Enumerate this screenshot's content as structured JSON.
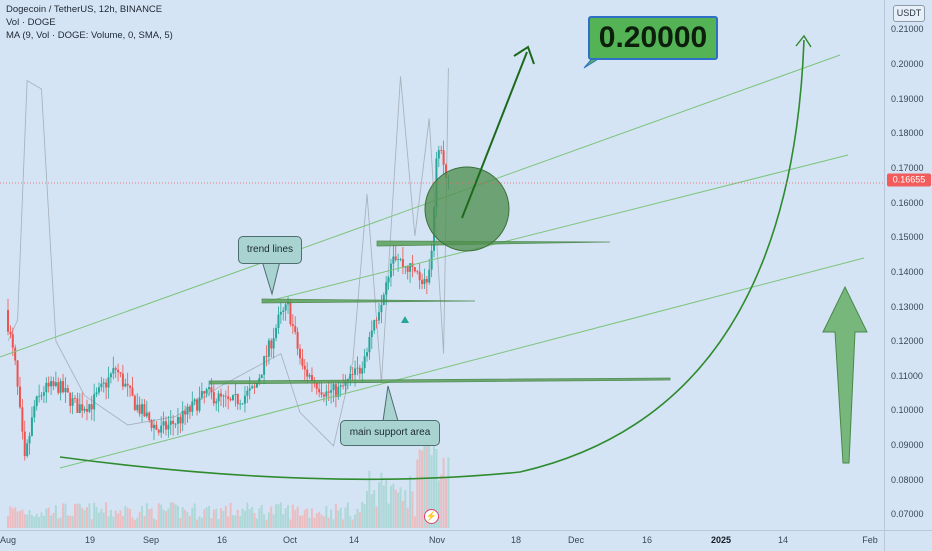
{
  "legend": {
    "line1": "Dogecoin / TetherUS, 12h, BINANCE",
    "line2": "Vol · DOGE",
    "line3": "MA (9, Vol · DOGE: Volume, 0, SMA, 5)"
  },
  "currency_label": "USDT",
  "last_price": {
    "label": "0.16655",
    "value": 0.16655,
    "color": "#f25c5c"
  },
  "annotations": {
    "target": "0.20000",
    "trend_lines": "trend lines",
    "support": "main support area"
  },
  "ms_badge": "⚡",
  "colors": {
    "up": "#26a69a",
    "down": "#ef5350",
    "drawing_green": "#2e8b2e",
    "background": "#d5e4f4"
  },
  "chart_data": {
    "type": "candlestick",
    "symbol": "Dogecoin / TetherUS",
    "interval": "12h",
    "exchange": "BINANCE",
    "y_axis": {
      "ticks": [
        "0.21000",
        "0.20000",
        "0.19000",
        "0.18000",
        "0.17000",
        "0.16000",
        "0.15000",
        "0.14000",
        "0.13000",
        "0.12000",
        "0.11000",
        "0.10000",
        "0.09000",
        "0.08000",
        "0.07000"
      ],
      "ylim": [
        0.0655,
        0.2185
      ]
    },
    "x_axis": {
      "ticks": [
        {
          "label": "Aug",
          "bold": false
        },
        {
          "label": "19",
          "bold": false
        },
        {
          "label": "Sep",
          "bold": false
        },
        {
          "label": "16",
          "bold": false
        },
        {
          "label": "Oct",
          "bold": false
        },
        {
          "label": "14",
          "bold": false
        },
        {
          "label": "Nov",
          "bold": false
        },
        {
          "label": "18",
          "bold": false
        },
        {
          "label": "Dec",
          "bold": false
        },
        {
          "label": "16",
          "bold": false
        },
        {
          "label": "2025",
          "bold": true
        },
        {
          "label": "14",
          "bold": false
        },
        {
          "label": "Feb",
          "bold": false
        }
      ],
      "start": "2024-08-01",
      "end": "2025-02-01"
    },
    "price_path": [
      [
        "2024-08-01",
        0.129
      ],
      [
        "2024-08-03",
        0.113
      ],
      [
        "2024-08-05",
        0.085
      ],
      [
        "2024-08-07",
        0.101
      ],
      [
        "2024-08-09",
        0.106
      ],
      [
        "2024-08-12",
        0.107
      ],
      [
        "2024-08-16",
        0.101
      ],
      [
        "2024-08-19",
        0.102
      ],
      [
        "2024-08-24",
        0.112
      ],
      [
        "2024-08-28",
        0.102
      ],
      [
        "2024-09-02",
        0.094
      ],
      [
        "2024-09-07",
        0.098
      ],
      [
        "2024-09-12",
        0.105
      ],
      [
        "2024-09-17",
        0.102
      ],
      [
        "2024-09-22",
        0.106
      ],
      [
        "2024-09-27",
        0.126
      ],
      [
        "2024-09-29",
        0.13
      ],
      [
        "2024-10-02",
        0.112
      ],
      [
        "2024-10-07",
        0.105
      ],
      [
        "2024-10-10",
        0.106
      ],
      [
        "2024-10-14",
        0.112
      ],
      [
        "2024-10-18",
        0.13
      ],
      [
        "2024-10-21",
        0.146
      ],
      [
        "2024-10-23",
        0.142
      ],
      [
        "2024-10-26",
        0.14
      ],
      [
        "2024-10-28",
        0.135
      ],
      [
        "2024-10-29",
        0.145
      ],
      [
        "2024-10-30",
        0.172
      ],
      [
        "2024-10-31",
        0.176
      ],
      [
        "2024-11-01",
        0.1666
      ]
    ],
    "volume_ma_path": [
      [
        "2024-08-01",
        0.35
      ],
      [
        "2024-08-03",
        0.4
      ],
      [
        "2024-08-05",
        0.97
      ],
      [
        "2024-08-08",
        0.95
      ],
      [
        "2024-08-11",
        0.35
      ],
      [
        "2024-08-17",
        0.22
      ],
      [
        "2024-08-26",
        0.15
      ],
      [
        "2024-09-05",
        0.17
      ],
      [
        "2024-09-14",
        0.24
      ],
      [
        "2024-09-27",
        0.32
      ],
      [
        "2024-10-01",
        0.18
      ],
      [
        "2024-10-08",
        0.1
      ],
      [
        "2024-10-12",
        0.3
      ],
      [
        "2024-10-15",
        0.7
      ],
      [
        "2024-10-18",
        0.25
      ],
      [
        "2024-10-22",
        0.98
      ],
      [
        "2024-10-25",
        0.6
      ],
      [
        "2024-10-28",
        0.88
      ],
      [
        "2024-10-31",
        0.32
      ],
      [
        "2024-11-01",
        1.0
      ]
    ]
  }
}
